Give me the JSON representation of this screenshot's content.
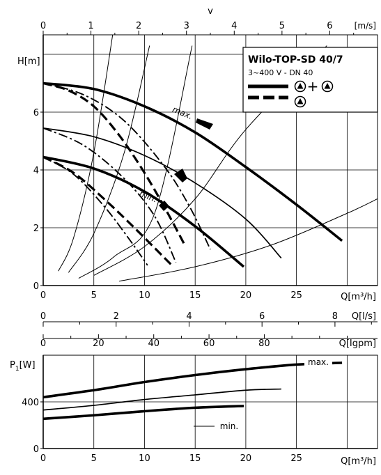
{
  "colors": {
    "ink": "#000000",
    "grid": "#000000",
    "background": "#ffffff"
  },
  "icons": [
    "pump-symbol-icon"
  ],
  "legend": {
    "title": "Wilo-TOP-SD 40/7",
    "subtitle": "3~400 V - DN 40",
    "plus": "+"
  },
  "chart_data": [
    {
      "type": "line",
      "title": "",
      "xlabel": "Q[m³/h]",
      "ylabel": "H[m]",
      "xlim": [
        0,
        33
      ],
      "ylim": [
        0,
        8
      ],
      "x_ticks": [
        0,
        5,
        10,
        15,
        20,
        25
      ],
      "y_ticks": [
        0,
        2,
        4,
        6
      ],
      "grid": true,
      "legend_position": "top-right",
      "top_axes": [
        {
          "label": "v",
          "unit": "[m/s]",
          "ticks": [
            0,
            1,
            2,
            3,
            4,
            5,
            6
          ]
        },
        {
          "label": "",
          "unit": "",
          "ticks": []
        }
      ],
      "secondary_axes": [
        {
          "label": "Q[l/s]",
          "ticks": [
            0,
            2,
            4,
            6,
            8
          ]
        },
        {
          "label": "Q[Igpm]",
          "ticks": [
            0,
            20,
            40,
            60,
            80
          ]
        }
      ],
      "annotations": [
        "max.",
        "min."
      ],
      "series": [
        {
          "style": "solid-bold",
          "x": [
            0,
            5,
            10,
            15,
            20,
            25,
            29.5
          ],
          "y": [
            7.0,
            6.8,
            6.2,
            5.3,
            4.1,
            2.8,
            1.55
          ]
        },
        {
          "style": "solid",
          "x": [
            0,
            5,
            10,
            15,
            20,
            23.5
          ],
          "y": [
            5.45,
            5.15,
            4.5,
            3.55,
            2.3,
            0.95
          ]
        },
        {
          "style": "solid-bold",
          "x": [
            0,
            5,
            10,
            15,
            19.8
          ],
          "y": [
            4.45,
            4.05,
            3.25,
            2.05,
            0.65
          ]
        },
        {
          "style": "dash-bold",
          "x": [
            0,
            2.5,
            5,
            7.5,
            10,
            12.3,
            13.9
          ],
          "y": [
            7.0,
            6.75,
            6.2,
            5.2,
            3.9,
            2.5,
            1.45
          ]
        },
        {
          "style": "dash-bold",
          "x": [
            0,
            3,
            6,
            9,
            12.7
          ],
          "y": [
            4.45,
            3.9,
            3.0,
            2.0,
            0.7
          ]
        },
        {
          "style": "dash-dot",
          "x": [
            0,
            4,
            8,
            12,
            14.5,
            16.5
          ],
          "y": [
            7.0,
            6.6,
            5.7,
            4.1,
            2.7,
            1.25
          ]
        },
        {
          "style": "dash-dot",
          "x": [
            0,
            4,
            8,
            11,
            13.1
          ],
          "y": [
            5.45,
            4.85,
            3.7,
            2.4,
            0.8
          ]
        },
        {
          "style": "dash-dot",
          "x": [
            0,
            3,
            6,
            8.5,
            10.3
          ],
          "y": [
            4.45,
            3.85,
            2.75,
            1.6,
            0.7
          ]
        },
        {
          "style": "system-thin",
          "x": [
            1.5,
            3,
            5,
            7
          ],
          "y": [
            0.5,
            1.65,
            4.6,
            9.0
          ]
        },
        {
          "style": "system-thin",
          "x": [
            2.5,
            5,
            8,
            10.5
          ],
          "y": [
            0.45,
            1.8,
            4.6,
            8.3
          ]
        },
        {
          "style": "system-thin",
          "x": [
            3.5,
            7,
            11,
            14.7
          ],
          "y": [
            0.25,
            1.0,
            2.5,
            8.3
          ]
        },
        {
          "style": "system-thin",
          "x": [
            5,
            10,
            15,
            20,
            28
          ],
          "y": [
            0.35,
            1.35,
            3.0,
            5.4,
            8.3
          ]
        },
        {
          "style": "system-thin",
          "x": [
            7.5,
            15,
            22.5,
            30,
            33
          ],
          "y": [
            0.15,
            0.65,
            1.4,
            2.5,
            3.0
          ]
        }
      ]
    },
    {
      "type": "line",
      "title": "",
      "xlabel": "Q[m³/h]",
      "ylabel_main": "P",
      "ylabel_sub": "1",
      "ylabel_unit": "[W]",
      "xlim": [
        0,
        33
      ],
      "ylim": [
        0,
        800
      ],
      "x_ticks": [
        0,
        5,
        10,
        15,
        20,
        25
      ],
      "y_ticks": [
        0,
        400
      ],
      "grid": true,
      "annotations": [
        "max.",
        "min."
      ],
      "series": [
        {
          "style": "solid-bold",
          "x": [
            0,
            5,
            10,
            15,
            20,
            25,
            29.5
          ],
          "y": [
            440,
            500,
            570,
            630,
            680,
            720,
            735
          ]
        },
        {
          "style": "solid",
          "x": [
            0,
            5,
            10,
            15,
            20,
            23.5
          ],
          "y": [
            330,
            370,
            420,
            460,
            500,
            510
          ]
        },
        {
          "style": "solid-bold",
          "x": [
            0,
            5,
            10,
            15,
            19.8
          ],
          "y": [
            255,
            285,
            320,
            350,
            365
          ]
        }
      ]
    }
  ]
}
